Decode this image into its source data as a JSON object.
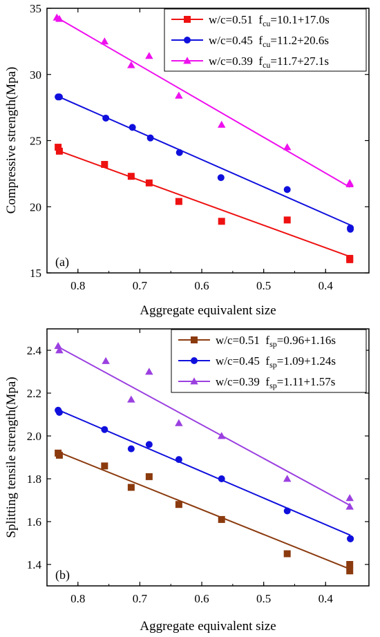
{
  "chart_data": [
    {
      "type": "scatter",
      "panel_label": "(a)",
      "xlabel": "Aggregate equivalent size",
      "ylabel": "Compressive strength(Mpa)",
      "xlim": [
        0.85,
        0.33
      ],
      "ylim": [
        15,
        35
      ],
      "x_reversed": true,
      "xticks": [
        0.8,
        0.7,
        0.6,
        0.5,
        0.4
      ],
      "xtick_labels": [
        "0.8",
        "0.7",
        "0.6",
        "0.5",
        "0.4"
      ],
      "yticks": [
        15,
        20,
        25,
        30,
        35
      ],
      "ytick_labels": [
        "15",
        "20",
        "25",
        "30",
        "35"
      ],
      "legend_position": "top-right",
      "series": [
        {
          "legend_name": "w/c=0.51",
          "formula_prefix": "f",
          "formula_sub": "cu",
          "formula_rest": "=10.1+17.0s",
          "color": "#ee1111",
          "marker": "square",
          "fit": {
            "intercept": 10.1,
            "slope": 17.0
          },
          "x": [
            0.832,
            0.83,
            0.757,
            0.714,
            0.685,
            0.637,
            0.568,
            0.462,
            0.361,
            0.361
          ],
          "y": [
            24.5,
            24.2,
            23.2,
            22.3,
            21.8,
            20.4,
            18.9,
            19.0,
            16.0,
            16.1
          ]
        },
        {
          "legend_name": "w/c=0.45",
          "formula_prefix": "f",
          "formula_sub": "cu",
          "formula_rest": "=11.2+20.6s",
          "color": "#1010dd",
          "marker": "circle",
          "fit": {
            "intercept": 11.2,
            "slope": 20.6
          },
          "x": [
            0.832,
            0.83,
            0.755,
            0.712,
            0.683,
            0.636,
            0.569,
            0.462,
            0.36,
            0.36
          ],
          "y": [
            28.3,
            28.3,
            26.7,
            26.0,
            25.2,
            24.1,
            22.2,
            21.3,
            18.4,
            18.3
          ]
        },
        {
          "legend_name": "w/c=0.39",
          "formula_prefix": "f",
          "formula_sub": "cu",
          "formula_rest": "=11.7+27.1s",
          "color": "#ee11ee",
          "marker": "triangle",
          "fit": {
            "intercept": 11.7,
            "slope": 27.1
          },
          "x": [
            0.834,
            0.83,
            0.757,
            0.714,
            0.685,
            0.637,
            0.568,
            0.462,
            0.361,
            0.361
          ],
          "y": [
            34.3,
            34.2,
            32.5,
            30.7,
            31.4,
            28.4,
            26.2,
            24.5,
            21.8,
            21.7
          ]
        }
      ]
    },
    {
      "type": "scatter",
      "panel_label": "(b)",
      "xlabel": "Aggregate equivalent size",
      "ylabel": "Splitting tensile strength(Mpa)",
      "xlim": [
        0.85,
        0.33
      ],
      "ylim": [
        1.3,
        2.5
      ],
      "x_reversed": true,
      "xticks": [
        0.8,
        0.7,
        0.6,
        0.5,
        0.4
      ],
      "xtick_labels": [
        "0.8",
        "0.7",
        "0.6",
        "0.5",
        "0.4"
      ],
      "yticks": [
        1.4,
        1.6,
        1.8,
        2.0,
        2.2,
        2.4
      ],
      "ytick_labels": [
        "1.4",
        "1.6",
        "1.8",
        "2.0",
        "2.2",
        "2.4"
      ],
      "legend_position": "top-right",
      "series": [
        {
          "legend_name": "w/c=0.51",
          "formula_prefix": "f",
          "formula_sub": "sp",
          "formula_rest": "=0.96+1.16s",
          "color": "#8b3a0e",
          "marker": "square",
          "fit": {
            "intercept": 0.96,
            "slope": 1.16
          },
          "x": [
            0.832,
            0.83,
            0.757,
            0.714,
            0.685,
            0.637,
            0.568,
            0.462,
            0.361,
            0.361
          ],
          "y": [
            1.92,
            1.91,
            1.86,
            1.76,
            1.81,
            1.68,
            1.61,
            1.45,
            1.4,
            1.37
          ]
        },
        {
          "legend_name": "w/c=0.45",
          "formula_prefix": "f",
          "formula_sub": "sp",
          "formula_rest": "=1.09+1.24s",
          "color": "#1010dd",
          "marker": "circle",
          "fit": {
            "intercept": 1.09,
            "slope": 1.24
          },
          "x": [
            0.832,
            0.83,
            0.757,
            0.714,
            0.685,
            0.637,
            0.568,
            0.462,
            0.36,
            0.36
          ],
          "y": [
            2.12,
            2.11,
            2.03,
            1.94,
            1.96,
            1.89,
            1.8,
            1.65,
            1.52,
            1.52
          ]
        },
        {
          "legend_name": "w/c=0.39",
          "formula_prefix": "f",
          "formula_sub": "sp",
          "formula_rest": "=1.11+1.57s",
          "color": "#9b40e0",
          "marker": "triangle",
          "fit": {
            "intercept": 1.11,
            "slope": 1.57
          },
          "x": [
            0.832,
            0.83,
            0.755,
            0.714,
            0.685,
            0.637,
            0.568,
            0.462,
            0.361,
            0.361
          ],
          "y": [
            2.42,
            2.4,
            2.35,
            2.17,
            2.3,
            2.06,
            2.0,
            1.8,
            1.71,
            1.67
          ]
        }
      ]
    }
  ]
}
